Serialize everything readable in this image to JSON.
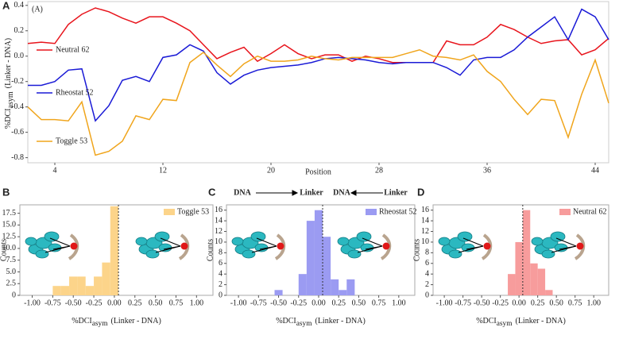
{
  "chart_data": [
    {
      "type": "line",
      "panel_label": "A",
      "title": "(A)",
      "xlabel": "Position",
      "ylabel": "%DCI",
      "ylabel_sub": "asym",
      "ylabel_tail": "(Linker - DNA)",
      "x": [
        2,
        3,
        4,
        5,
        6,
        7,
        8,
        9,
        10,
        11,
        12,
        13,
        14,
        15,
        16,
        17,
        18,
        19,
        20,
        21,
        22,
        23,
        24,
        25,
        26,
        27,
        28,
        29,
        30,
        31,
        32,
        33,
        34,
        35,
        36,
        37,
        38,
        39,
        40,
        41,
        42,
        43,
        44,
        45
      ],
      "series": [
        {
          "name": "Neutral 62",
          "color": "#e8141c",
          "values": [
            0.1,
            0.11,
            0.1,
            0.25,
            0.33,
            0.38,
            0.35,
            0.3,
            0.26,
            0.31,
            0.31,
            0.26,
            0.2,
            0.09,
            -0.02,
            0.03,
            0.07,
            -0.04,
            0.02,
            0.09,
            0.02,
            -0.02,
            0.01,
            0.01,
            -0.04,
            0.0,
            -0.02,
            -0.05,
            -0.05,
            -0.05,
            -0.05,
            0.12,
            0.09,
            0.09,
            0.15,
            0.25,
            0.21,
            0.15,
            0.1,
            0.12,
            0.13,
            0.01,
            0.05,
            0.14
          ]
        },
        {
          "name": "Rheostat 52",
          "color": "#1a1ad6",
          "values": [
            -0.23,
            -0.23,
            -0.2,
            -0.11,
            -0.1,
            -0.51,
            -0.39,
            -0.19,
            -0.16,
            -0.2,
            -0.01,
            0.01,
            0.09,
            0.04,
            -0.13,
            -0.22,
            -0.15,
            -0.11,
            -0.09,
            -0.08,
            -0.07,
            -0.05,
            -0.02,
            -0.01,
            -0.02,
            -0.03,
            -0.05,
            -0.06,
            -0.05,
            -0.05,
            -0.05,
            -0.09,
            -0.15,
            -0.03,
            -0.01,
            -0.01,
            0.05,
            0.15,
            0.23,
            0.31,
            0.13,
            0.37,
            0.31,
            0.13
          ]
        },
        {
          "name": "Toggle 53",
          "color": "#f0a51c",
          "values": [
            -0.4,
            -0.5,
            -0.5,
            -0.51,
            -0.36,
            -0.78,
            -0.75,
            -0.67,
            -0.47,
            -0.5,
            -0.34,
            -0.35,
            -0.05,
            0.03,
            -0.07,
            -0.16,
            -0.06,
            0.0,
            -0.04,
            -0.04,
            -0.03,
            0.0,
            -0.02,
            -0.03,
            -0.01,
            -0.01,
            -0.01,
            -0.01,
            0.02,
            0.05,
            0.0,
            -0.01,
            -0.03,
            0.01,
            -0.12,
            -0.2,
            -0.34,
            -0.46,
            -0.34,
            -0.35,
            -0.64,
            -0.3,
            -0.03,
            -0.37
          ]
        }
      ],
      "xlim": [
        2,
        45
      ],
      "xticks": [
        4,
        12,
        20,
        28,
        36,
        44
      ],
      "ylim": [
        -0.84,
        0.43
      ],
      "yticks": [
        0.4,
        0.2,
        {
          "value": 0,
          "label": "0.0"
        },
        -0.2,
        -0.4,
        -0.6,
        -0.8
      ]
    },
    {
      "type": "histogram",
      "panel_label": "B",
      "name": "Toggle 53",
      "color": "#fcd48a",
      "ylabel": "Counts",
      "xlabel": "%DCI",
      "xlabel_sub": "asym",
      "xlabel_tail": "(Linker - DNA)",
      "bins": [
        -0.75,
        -0.65,
        -0.55,
        -0.45,
        -0.35,
        -0.25,
        -0.15,
        -0.05,
        0.05
      ],
      "counts": [
        2,
        2,
        4,
        4,
        2,
        4,
        7,
        19
      ],
      "reference_line": 0.05,
      "xlim": [
        -1.15,
        1.2
      ],
      "xticks": [
        {
          "value": -1,
          "label": "-1.00"
        },
        {
          "value": -0.75,
          "label": "-0.75"
        },
        {
          "value": -0.5,
          "label": "-0.50"
        },
        {
          "value": -0.25,
          "label": "-0.25"
        },
        {
          "value": 0,
          "label": "0.00"
        },
        {
          "value": 0.25,
          "label": "0.25"
        },
        {
          "value": 0.5,
          "label": "0.50"
        },
        {
          "value": 0.75,
          "label": "0.75"
        },
        {
          "value": 1,
          "label": "1.00"
        }
      ],
      "ylim": [
        0,
        19.3
      ],
      "yticks": [
        0,
        2.5,
        {
          "value": 5,
          "label": "5.0"
        },
        7.5,
        {
          "value": 10,
          "label": "10.0"
        },
        12.5,
        {
          "value": 15,
          "label": "15.0"
        },
        17.5
      ]
    },
    {
      "type": "histogram",
      "panel_label": "C",
      "name": "Rheostat 52",
      "color": "#9b9bf2",
      "annotations": [
        "DNA",
        "Linker",
        "DNA",
        "Linker"
      ],
      "ylabel": "Counts",
      "xlabel": "%DCI",
      "xlabel_sub": "asym",
      "xlabel_tail": "(Linker - DNA)",
      "bins": [
        -0.55,
        -0.45,
        -0.35,
        -0.25,
        -0.15,
        -0.05,
        0.05,
        0.15,
        0.25,
        0.35,
        0.45
      ],
      "counts": [
        1,
        0,
        0,
        4,
        14,
        16,
        11,
        3,
        1,
        3
      ],
      "reference_line": 0.05,
      "xlim": [
        -1.15,
        1.2
      ],
      "xticks": [
        {
          "value": -1,
          "label": "-1.00"
        },
        {
          "value": -0.75,
          "label": "-0.75"
        },
        {
          "value": -0.5,
          "label": "-0.50"
        },
        {
          "value": -0.25,
          "label": "-0.25"
        },
        {
          "value": 0,
          "label": "0.00"
        },
        {
          "value": 0.25,
          "label": "0.25"
        },
        {
          "value": 0.5,
          "label": "0.50"
        },
        {
          "value": 0.75,
          "label": "0.75"
        },
        {
          "value": 1,
          "label": "1.00"
        }
      ],
      "ylim": [
        0,
        17
      ],
      "yticks": [
        0,
        2,
        4,
        6,
        8,
        10,
        12,
        14,
        16
      ]
    },
    {
      "type": "histogram",
      "panel_label": "D",
      "name": "Neutral 62",
      "color": "#f79c9c",
      "ylabel": "Counts",
      "xlabel": "%DCI",
      "xlabel_sub": "asym",
      "xlabel_tail": "(Linker - DNA)",
      "bins": [
        -0.15,
        -0.05,
        0.05,
        0.15,
        0.25,
        0.35,
        0.45
      ],
      "counts": [
        4,
        10,
        16,
        6,
        5,
        1
      ],
      "reference_line": 0.05,
      "xlim": [
        -1.15,
        1.2
      ],
      "xticks": [
        {
          "value": -1,
          "label": "-1.00"
        },
        {
          "value": -0.75,
          "label": "-0.75"
        },
        {
          "value": -0.5,
          "label": "-0.50"
        },
        {
          "value": -0.25,
          "label": "-0.25"
        },
        {
          "value": 0,
          "label": "0.00"
        },
        {
          "value": 0.25,
          "label": "0.25"
        },
        {
          "value": 0.5,
          "label": "0.50"
        },
        {
          "value": 0.75,
          "label": "0.75"
        },
        {
          "value": 1,
          "label": "1.00"
        }
      ],
      "ylim": [
        0,
        17
      ],
      "yticks": [
        0,
        2,
        4,
        6,
        8,
        10,
        12,
        14,
        16
      ]
    }
  ]
}
